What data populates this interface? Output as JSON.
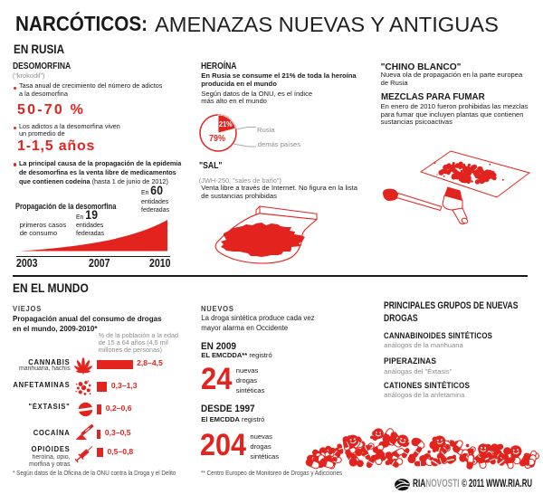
{
  "page": {
    "title_black": "NARCÓTICOS:",
    "title_rest": "AMENAZAS NUEVAS Y ANTIGUAS"
  },
  "russia": {
    "header": "EN RUSIA",
    "desomorfina": {
      "title": "DESOMORFINA",
      "alias": "(\"krokodil\")",
      "bullet1": "Tasa anual de crecimiento del número de adictos\na la desomorfina",
      "stat1": "50-70 %",
      "bullet2": "Los adictos a la desomorfina viven\nun promedio de",
      "stat2": "1-1,5 años",
      "bullet3_bold": "La principal causa de la propagación de la epidemia de desomorfina es la venta libre de medicamentos que contienen codeína",
      "bullet3_note": "(hasta 1 de junio de 2012)"
    },
    "heroina": {
      "title": "HEROÍNA",
      "lead": "En Rusia se consume el 21% de toda la heroína\nproducida en el mundo",
      "body": "Según datos de la ONU, es el índice\nmás alto en el mundo"
    },
    "sal": {
      "title": "\"SAL\"",
      "alias": "(JWH-250, \"sales de baño\")",
      "body": "Venta libre a través de Internet. No figura en la lista\nde sustancias prohibidas"
    },
    "chino": {
      "title": "\"CHINO BLANCO\"",
      "body": "Nueva ola de propagación en la parte europea\nde Rusia"
    },
    "mezclas": {
      "title": "MEZCLAS PARA FUMAR",
      "body": "En enero de 2010 fueron prohibidas las mezclas\npara fumar que incluyen plantas que contienen\nsustancias psicoactivas"
    }
  },
  "mundo": {
    "header": "EN EL MUNDO",
    "viejos": {
      "title": "VIEJOS",
      "lead": "Propagación anual del consumo de drogas\nen el mundo, 2009-2010*",
      "note": "% de la población a la edad\nde 15 a 64 años (4,5 mil\nmillones de personas)",
      "footnote": "* Según datos de la Oficina de la ONU contra la Droga y el Delito"
    },
    "nuevos": {
      "title": "NUEVOS",
      "lead": "La droga sintética produce cada vez\nmayor alarma en Occidente",
      "item1_heading": "EN 2009",
      "item1_source": "EL EMCDDA**",
      "item1_verb": "registró",
      "item1_number": "24",
      "item1_caption": "nuevas\ndrogas\nsintéticas",
      "item2_heading": "DESDE 1997",
      "item2_source": "El EMCDDA",
      "item2_verb": "registró",
      "item2_number": "204",
      "item2_caption": "nuevas\ndrogas\nsintéticas",
      "footnote": "** Centro Europeo de Monitoreo de Drogas y Adicciones"
    },
    "grupos": {
      "title": "PRINCIPALES GRUPOS DE NUEVAS\nDROGAS",
      "items": [
        {
          "name": "CANNABINOIDES SINTÉTICOS",
          "sub": "análogos de la marihuana"
        },
        {
          "name": "PIPERAZINAS",
          "sub": "análogas del \"Éxtasis\""
        },
        {
          "name": "CATIONES SINTÉTICOS",
          "sub": "análogos de la anfetamina"
        }
      ]
    }
  },
  "footer": {
    "brand_black": "RIA",
    "brand_gray": "NOVOSTI",
    "copyright": "© 2011 WWW.RIA.RU"
  },
  "colors": {
    "red": "#e2231e",
    "black": "#1a1a1a",
    "gray": "#8c8c8c"
  },
  "chart_data": [
    {
      "type": "area",
      "title": "Propagación de la desomorfina",
      "x": [
        "2003",
        "2007",
        "2010"
      ],
      "values": [
        0,
        19,
        60
      ],
      "unit": "entidades federadas",
      "annotations": [
        {
          "label": "primeros casos\nde consumo"
        },
        {
          "prefix": "En",
          "value": "19",
          "label": "entidades\nfederadas"
        },
        {
          "prefix": "En",
          "value": "60",
          "label": "entidades\nfederadas"
        }
      ]
    },
    {
      "type": "pie",
      "title": "Heroína producida en el mundo que se consume en Rusia",
      "labels": [
        "Rusia",
        "demás países"
      ],
      "values": [
        21,
        79
      ],
      "value_labels": [
        "21%",
        "79%"
      ]
    },
    {
      "type": "bar",
      "title": "Propagación anual del consumo de drogas en el mundo, 2009-2010",
      "unit": "% de la población a la edad de 15 a 64 años (4,5 mil millones de personas)",
      "categories": [
        "CANNABIS",
        "ANFETAMINAS",
        "\"ÉXTASIS\"",
        "COCAÍNA",
        "OPIÓIDES"
      ],
      "category_subs": [
        "marihuana, hachís",
        "",
        "",
        "",
        "heroína, opio,\nmorfina y otras"
      ],
      "ranges": [
        [
          2.8,
          4.5
        ],
        [
          0.3,
          1.3
        ],
        [
          0.2,
          0.6
        ],
        [
          0.3,
          0.5
        ],
        [
          0.5,
          0.8
        ]
      ],
      "value_labels": [
        "2,8–4,5",
        "0,3–1,3",
        "0,2–0,6",
        "0,3–0,5",
        "0,5–0,8"
      ],
      "icons": [
        "cannabis-leaf",
        "amphetamine-dots",
        "ecstasy-pill",
        "cocaine-razor-powder",
        "opioid-syringe"
      ]
    }
  ]
}
